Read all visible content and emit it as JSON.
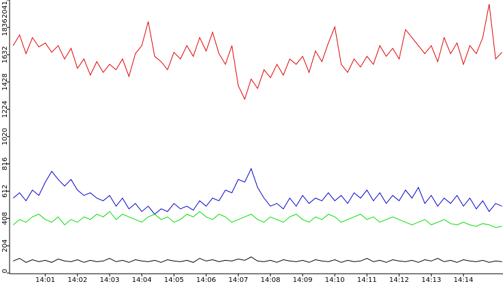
{
  "chart_data": {
    "type": "line",
    "x": [
      0,
      0.2,
      0.4,
      0.6,
      0.8,
      1,
      1.2,
      1.4,
      1.6,
      1.8,
      2,
      2.2,
      2.4,
      2.6,
      2.8,
      3,
      3.2,
      3.4,
      3.6,
      3.8,
      4,
      4.2,
      4.4,
      4.6,
      4.8,
      5,
      5.2,
      5.4,
      5.6,
      5.8,
      6,
      6.2,
      6.4,
      6.6,
      6.8,
      7,
      7.2,
      7.4,
      7.6,
      7.8,
      8,
      8.2,
      8.4,
      8.6,
      8.8,
      9,
      9.2,
      9.4,
      9.6,
      9.8,
      10,
      10.2,
      10.4,
      10.6,
      10.8,
      11,
      11.2,
      11.4,
      11.6,
      11.8,
      12,
      12.2,
      12.4,
      12.6,
      12.8,
      13,
      13.2,
      13.4,
      13.6,
      13.8,
      14,
      14.2,
      14.4,
      14.6,
      14.8,
      15,
      15.2
    ],
    "series": [
      {
        "color": "#e00000",
        "values": [
          1700,
          1780,
          1640,
          1760,
          1690,
          1720,
          1650,
          1700,
          1600,
          1680,
          1530,
          1600,
          1480,
          1580,
          1500,
          1560,
          1520,
          1600,
          1470,
          1640,
          1700,
          1880,
          1620,
          1580,
          1520,
          1650,
          1600,
          1700,
          1620,
          1760,
          1660,
          1800,
          1640,
          1560,
          1700,
          1400,
          1300,
          1450,
          1380,
          1520,
          1460,
          1560,
          1480,
          1600,
          1560,
          1620,
          1500,
          1660,
          1580,
          1720,
          1840,
          1560,
          1500,
          1600,
          1540,
          1620,
          1560,
          1700,
          1620,
          1680,
          1600,
          1820,
          1760,
          1700,
          1640,
          1700,
          1580,
          1760,
          1640,
          1720,
          1560,
          1700,
          1640,
          1760,
          2010,
          1600,
          1650
        ]
      },
      {
        "color": "#0000cc",
        "values": [
          560,
          600,
          540,
          620,
          580,
          680,
          760,
          700,
          650,
          700,
          620,
          580,
          600,
          560,
          540,
          580,
          500,
          560,
          480,
          520,
          460,
          500,
          440,
          480,
          460,
          520,
          480,
          500,
          470,
          540,
          500,
          560,
          540,
          620,
          600,
          700,
          680,
          780,
          640,
          560,
          500,
          520,
          480,
          560,
          500,
          580,
          520,
          560,
          540,
          600,
          540,
          580,
          520,
          600,
          560,
          620,
          540,
          600,
          520,
          580,
          540,
          620,
          560,
          640,
          520,
          580,
          500,
          560,
          520,
          580,
          500,
          560,
          480,
          540,
          460,
          520,
          500
        ]
      },
      {
        "color": "#00dd00",
        "values": [
          360,
          400,
          380,
          420,
          440,
          400,
          380,
          420,
          360,
          400,
          380,
          420,
          400,
          440,
          420,
          460,
          400,
          440,
          420,
          400,
          380,
          420,
          440,
          400,
          420,
          380,
          400,
          440,
          420,
          460,
          420,
          400,
          440,
          420,
          380,
          400,
          420,
          440,
          400,
          380,
          420,
          400,
          380,
          420,
          440,
          400,
          380,
          420,
          400,
          440,
          420,
          380,
          400,
          420,
          440,
          400,
          420,
          380,
          400,
          420,
          400,
          380,
          360,
          380,
          400,
          360,
          380,
          400,
          370,
          360,
          380,
          360,
          350,
          370,
          360,
          340,
          350
        ]
      },
      {
        "color": "#000000",
        "values": [
          90,
          110,
          80,
          100,
          85,
          95,
          80,
          105,
          90,
          85,
          100,
          80,
          95,
          85,
          90,
          110,
          85,
          95,
          80,
          100,
          90,
          85,
          95,
          80,
          100,
          90,
          85,
          95,
          80,
          110,
          90,
          100,
          85,
          95,
          90,
          105,
          95,
          120,
          90,
          85,
          95,
          80,
          100,
          90,
          85,
          95,
          80,
          100,
          90,
          85,
          100,
          80,
          95,
          85,
          90,
          110,
          85,
          95,
          80,
          100,
          90,
          85,
          95,
          80,
          100,
          90,
          110,
          85,
          95,
          80,
          100,
          90,
          85,
          95,
          80,
          90,
          85
        ]
      }
    ],
    "xlim": [
      -0.11,
      15.23
    ],
    "xticks": [
      {
        "value": 1,
        "label": "14:01"
      },
      {
        "value": 2,
        "label": "14:02"
      },
      {
        "value": 3,
        "label": "14:03"
      },
      {
        "value": 4,
        "label": "14:04"
      },
      {
        "value": 5,
        "label": "14:05"
      },
      {
        "value": 6,
        "label": "14:06"
      },
      {
        "value": 7,
        "label": "14:07"
      },
      {
        "value": 8,
        "label": "14:08"
      },
      {
        "value": 9,
        "label": "14:09"
      },
      {
        "value": 10,
        "label": "14:10"
      },
      {
        "value": 11,
        "label": "14:11"
      },
      {
        "value": 12,
        "label": "14:12"
      },
      {
        "value": 13,
        "label": "14:13"
      },
      {
        "value": 14,
        "label": "14:14"
      }
    ],
    "ylim": [
      0,
      2041
    ],
    "yticks": [
      0,
      204,
      408,
      612,
      816,
      1020,
      1224,
      1428,
      1632,
      1836,
      2041
    ]
  }
}
